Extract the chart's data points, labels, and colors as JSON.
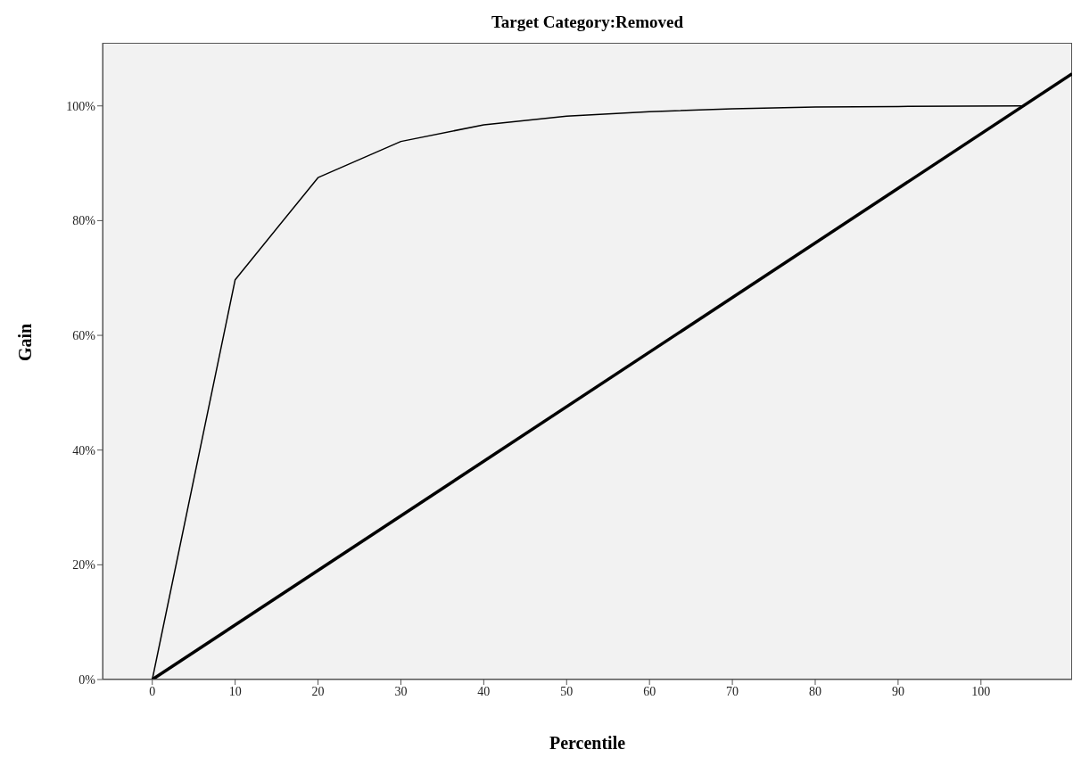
{
  "chart_data": {
    "type": "line",
    "title": "Target Category:Removed",
    "xlabel": "Percentile",
    "ylabel": "Gain",
    "xlim": [
      -6,
      111
    ],
    "xticks": [
      0,
      10,
      20,
      30,
      40,
      50,
      60,
      70,
      80,
      90,
      100
    ],
    "ylim": [
      0,
      111
    ],
    "yticks": [
      {
        "value": 0,
        "label": "0%"
      },
      {
        "value": 20,
        "label": "20%"
      },
      {
        "value": 40,
        "label": "40%"
      },
      {
        "value": 60,
        "label": "60%"
      },
      {
        "value": 80,
        "label": "80%"
      },
      {
        "value": 100,
        "label": "100%"
      }
    ],
    "marker": "none",
    "line_style": "solid",
    "series": [
      {
        "color": "#000000",
        "x": [
          0,
          10,
          20,
          30,
          40,
          50,
          60,
          70,
          80,
          90,
          105
        ],
        "values": [
          0,
          69.7,
          87.5,
          93.8,
          96.7,
          98.2,
          99.0,
          99.5,
          99.8,
          99.9,
          100
        ]
      },
      {
        "color": "#000000",
        "x": [
          0,
          111
        ],
        "values": [
          0,
          105.6
        ]
      }
    ]
  }
}
